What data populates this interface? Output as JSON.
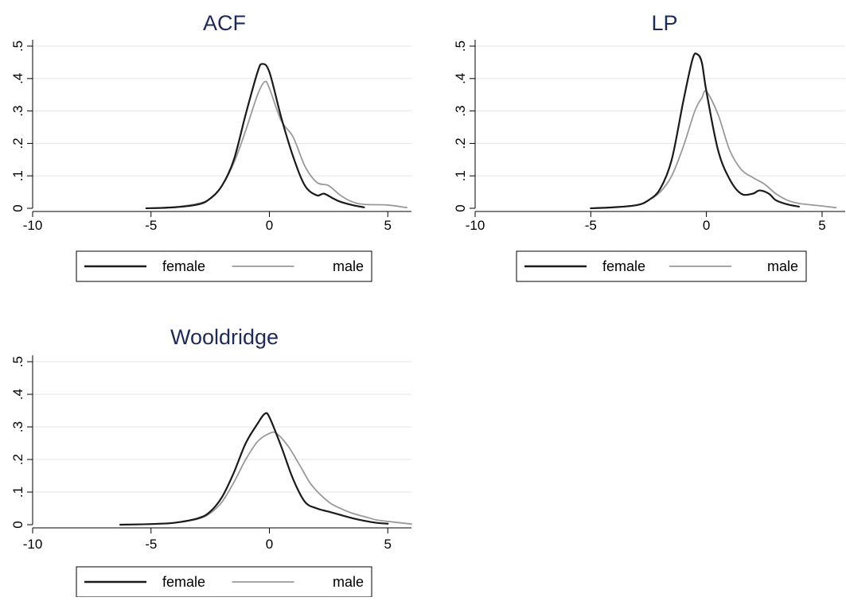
{
  "chart_data": [
    {
      "type": "line",
      "title": "ACF",
      "xlim": [
        -10,
        6
      ],
      "ylim": [
        0,
        0.5
      ],
      "x_ticks": [
        {
          "value": -10,
          "label": "-10"
        },
        {
          "value": -5,
          "label": "-5"
        },
        {
          "value": 0,
          "label": "0"
        },
        {
          "value": 5,
          "label": "5"
        }
      ],
      "y_ticks": [
        {
          "value": 0,
          "label": "0"
        },
        {
          "value": 0.1,
          "label": ".1"
        },
        {
          "value": 0.2,
          "label": ".2"
        },
        {
          "value": 0.3,
          "label": ".3"
        },
        {
          "value": 0.4,
          "label": ".4"
        },
        {
          "value": 0.5,
          "label": ".5"
        }
      ],
      "grid": true,
      "legend": {
        "placement": "bottom",
        "entries": [
          "female",
          "male"
        ]
      },
      "series": [
        {
          "name": "female",
          "color": "#1a1a1a",
          "x": [
            -5.2,
            -4,
            -3,
            -2.5,
            -2,
            -1.5,
            -1,
            -0.5,
            -0.3,
            0,
            0.5,
            1,
            1.5,
            2,
            2.3,
            2.7,
            3,
            3.5,
            4
          ],
          "y": [
            0,
            0.003,
            0.012,
            0.03,
            0.07,
            0.15,
            0.29,
            0.42,
            0.445,
            0.42,
            0.28,
            0.16,
            0.07,
            0.04,
            0.045,
            0.03,
            0.02,
            0.01,
            0.003
          ]
        },
        {
          "name": "male",
          "color": "#999999",
          "x": [
            -5,
            -4,
            -3,
            -2.5,
            -2,
            -1.5,
            -1,
            -0.5,
            -0.2,
            0,
            0.5,
            1,
            1.5,
            2,
            2.5,
            3,
            3.5,
            4,
            5,
            5.8
          ],
          "y": [
            0,
            0.004,
            0.015,
            0.03,
            0.07,
            0.14,
            0.24,
            0.35,
            0.39,
            0.37,
            0.27,
            0.22,
            0.13,
            0.08,
            0.07,
            0.04,
            0.02,
            0.012,
            0.01,
            0.002
          ]
        }
      ]
    },
    {
      "type": "line",
      "title": "LP",
      "xlim": [
        -10,
        6
      ],
      "ylim": [
        0,
        0.5
      ],
      "x_ticks": [
        {
          "value": -10,
          "label": "-10"
        },
        {
          "value": -5,
          "label": "-5"
        },
        {
          "value": 0,
          "label": "0"
        },
        {
          "value": 5,
          "label": "5"
        }
      ],
      "y_ticks": [
        {
          "value": 0,
          "label": "0"
        },
        {
          "value": 0.1,
          "label": ".1"
        },
        {
          "value": 0.2,
          "label": ".2"
        },
        {
          "value": 0.3,
          "label": ".3"
        },
        {
          "value": 0.4,
          "label": ".4"
        },
        {
          "value": 0.5,
          "label": ".5"
        }
      ],
      "grid": true,
      "legend": {
        "placement": "bottom",
        "entries": [
          "female",
          "male"
        ]
      },
      "series": [
        {
          "name": "female",
          "color": "#1a1a1a",
          "x": [
            -5,
            -4,
            -3,
            -2.5,
            -2,
            -1.5,
            -1,
            -0.6,
            -0.4,
            -0.2,
            0,
            0.5,
            1,
            1.5,
            2,
            2.3,
            2.7,
            3,
            3.5,
            4
          ],
          "y": [
            0,
            0.003,
            0.01,
            0.025,
            0.06,
            0.15,
            0.33,
            0.46,
            0.475,
            0.45,
            0.36,
            0.18,
            0.09,
            0.045,
            0.045,
            0.055,
            0.045,
            0.025,
            0.012,
            0.005
          ]
        },
        {
          "name": "male",
          "color": "#999999",
          "x": [
            -5,
            -4,
            -3,
            -2.5,
            -2,
            -1.5,
            -1,
            -0.5,
            -0.2,
            0,
            0.5,
            1,
            1.5,
            2,
            2.5,
            3,
            3.5,
            4,
            5,
            5.6
          ],
          "y": [
            0,
            0.003,
            0.01,
            0.025,
            0.05,
            0.1,
            0.19,
            0.3,
            0.34,
            0.36,
            0.29,
            0.18,
            0.12,
            0.095,
            0.075,
            0.045,
            0.025,
            0.015,
            0.007,
            0.002
          ]
        }
      ]
    },
    {
      "type": "line",
      "title": "Wooldridge",
      "xlim": [
        -10,
        6
      ],
      "ylim": [
        0,
        0.5
      ],
      "x_ticks": [
        {
          "value": -10,
          "label": "-10"
        },
        {
          "value": -5,
          "label": "-5"
        },
        {
          "value": 0,
          "label": "0"
        },
        {
          "value": 5,
          "label": "5"
        }
      ],
      "y_ticks": [
        {
          "value": 0,
          "label": "0"
        },
        {
          "value": 0.1,
          "label": ".1"
        },
        {
          "value": 0.2,
          "label": ".2"
        },
        {
          "value": 0.3,
          "label": ".3"
        },
        {
          "value": 0.4,
          "label": ".4"
        },
        {
          "value": 0.5,
          "label": ".5"
        }
      ],
      "grid": true,
      "legend": {
        "placement": "bottom",
        "entries": [
          "female",
          "male"
        ]
      },
      "series": [
        {
          "name": "female",
          "color": "#1a1a1a",
          "x": [
            -6.3,
            -5,
            -4,
            -3,
            -2.5,
            -2,
            -1.5,
            -1,
            -0.5,
            -0.2,
            0,
            0.5,
            1,
            1.5,
            2,
            2.5,
            3,
            3.5,
            4,
            4.5,
            5
          ],
          "y": [
            0,
            0.002,
            0.006,
            0.02,
            0.04,
            0.085,
            0.16,
            0.25,
            0.31,
            0.34,
            0.33,
            0.24,
            0.14,
            0.07,
            0.05,
            0.04,
            0.03,
            0.02,
            0.012,
            0.006,
            0.003
          ]
        },
        {
          "name": "male",
          "color": "#999999",
          "x": [
            -6.3,
            -5,
            -4,
            -3,
            -2.5,
            -2,
            -1.5,
            -1,
            -0.5,
            0,
            0.3,
            0.8,
            1.3,
            1.8,
            2.5,
            3,
            3.5,
            4,
            4.5,
            5,
            6
          ],
          "y": [
            0,
            0.002,
            0.006,
            0.018,
            0.035,
            0.07,
            0.13,
            0.2,
            0.255,
            0.28,
            0.28,
            0.24,
            0.18,
            0.12,
            0.07,
            0.05,
            0.035,
            0.025,
            0.015,
            0.01,
            0.002
          ]
        }
      ]
    }
  ]
}
